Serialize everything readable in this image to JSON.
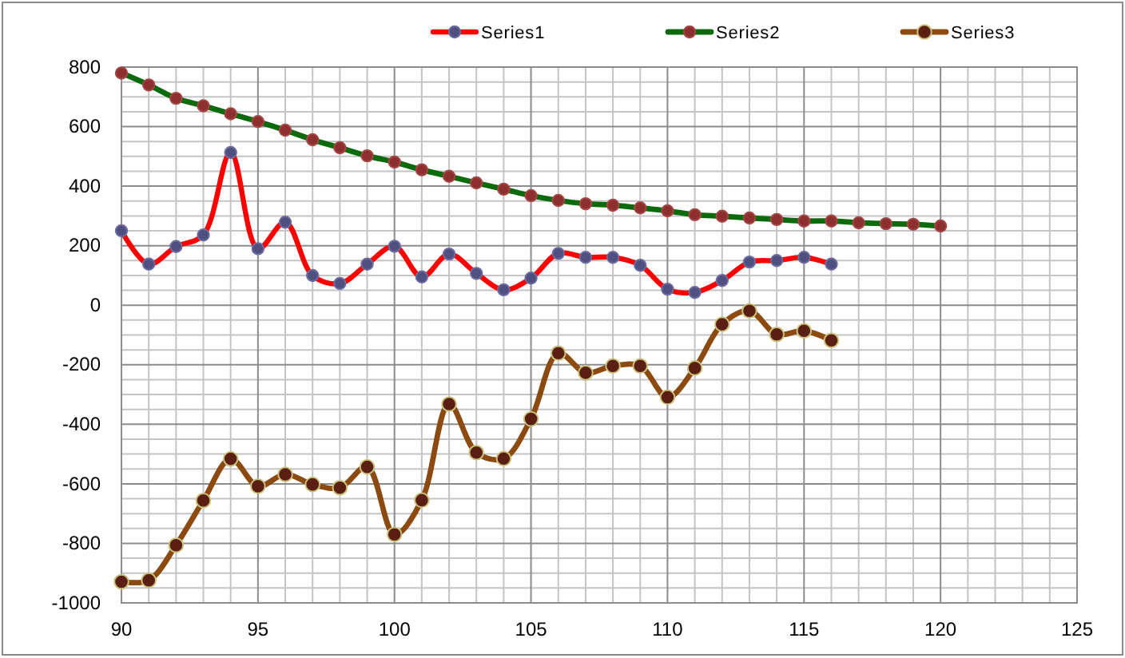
{
  "chart_data": {
    "type": "line",
    "x": [
      90,
      91,
      92,
      93,
      94,
      95,
      96,
      97,
      98,
      99,
      100,
      101,
      102,
      103,
      104,
      105,
      106,
      107,
      108,
      109,
      110,
      111,
      112,
      113,
      114,
      115,
      116,
      117,
      118,
      119,
      120
    ],
    "series": [
      {
        "name": "Series1",
        "color": "#ff0000",
        "values": [
          250,
          138,
          197,
          236,
          513,
          190,
          279,
          100,
          73,
          138,
          198,
          95,
          172,
          107,
          52,
          91,
          174,
          161,
          161,
          134,
          54,
          43,
          83,
          145,
          150,
          161,
          138,
          null,
          null,
          null,
          null
        ]
      },
      {
        "name": "Series2",
        "color": "#0b6a0b",
        "values": [
          780,
          740,
          695,
          670,
          643,
          617,
          588,
          556,
          529,
          502,
          481,
          455,
          433,
          411,
          390,
          368,
          352,
          341,
          336,
          327,
          317,
          304,
          299,
          293,
          288,
          283,
          283,
          277,
          274,
          272,
          266
        ]
      },
      {
        "name": "Series3",
        "color": "#8c4a10",
        "values": [
          -929,
          -924,
          -806,
          -656,
          -516,
          -608,
          -568,
          -602,
          -613,
          -543,
          -770,
          -655,
          -332,
          -495,
          -515,
          -382,
          -161,
          -227,
          -204,
          -204,
          -309,
          -211,
          -64,
          -19,
          -98,
          -86,
          -118,
          null,
          null,
          null,
          null
        ]
      }
    ],
    "xlim": [
      90,
      125
    ],
    "xticks": [
      90,
      95,
      100,
      105,
      110,
      115,
      120,
      125
    ],
    "ylim": [
      -1000,
      800
    ],
    "yticks": [
      -1000,
      -800,
      -600,
      -400,
      -200,
      0,
      200,
      400,
      600,
      800
    ],
    "grid": true,
    "legend": "top",
    "marker": "circle",
    "line_style": "solid"
  }
}
